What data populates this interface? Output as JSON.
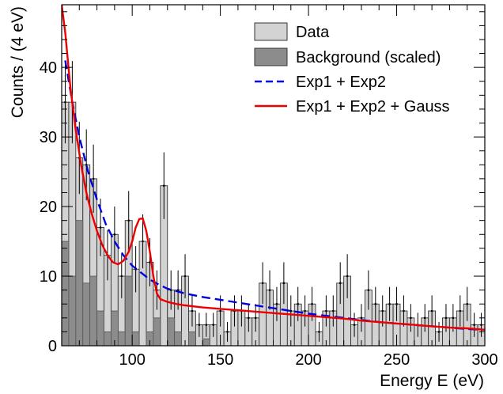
{
  "chart_data": {
    "type": "bar",
    "xlabel": "Energy E (eV)",
    "ylabel": "Counts / (4 eV)",
    "xlim": [
      60,
      300
    ],
    "ylim": [
      0,
      49
    ],
    "bin_width": 4,
    "x_ticks": [
      100,
      150,
      200,
      250,
      300
    ],
    "y_ticks": [
      0,
      10,
      20,
      30,
      40
    ],
    "grid": false,
    "legend_position": "top-right",
    "legend": [
      {
        "label": "Data",
        "kind": "box",
        "color": "#d3d3d3"
      },
      {
        "label": "Background (scaled)",
        "kind": "box",
        "color": "#8c8c8c"
      },
      {
        "label": "Exp1 + Exp2",
        "kind": "dashed-line",
        "color": "#0000dd"
      },
      {
        "label": "Exp1 + Exp2 + Gauss",
        "kind": "line",
        "color": "#ee0000"
      }
    ],
    "series": [
      {
        "name": "Data",
        "color": "#d3d3d3",
        "bin_start": 60,
        "values": [
          35,
          35,
          27,
          26,
          24,
          17,
          13,
          16,
          10,
          18,
          11,
          15,
          12,
          8,
          23,
          8,
          8,
          10,
          5,
          3,
          3,
          3,
          5,
          2,
          5,
          5,
          4,
          4,
          9,
          8,
          6,
          9,
          5,
          6,
          5,
          6,
          2,
          5,
          5,
          9,
          10,
          3,
          4,
          8,
          6,
          5,
          6,
          6,
          5,
          4,
          3,
          4,
          5,
          2,
          4,
          4,
          5,
          6,
          3,
          3
        ]
      },
      {
        "name": "Background (scaled)",
        "color": "#8c8c8c",
        "bin_start": 60,
        "values": [
          15,
          10,
          18,
          9,
          10,
          5,
          2,
          5,
          2,
          10,
          2,
          0,
          2,
          4,
          0,
          4,
          2,
          0,
          2,
          0,
          1,
          0,
          0,
          0,
          0,
          0,
          0,
          0,
          0,
          0,
          0,
          0,
          0,
          0,
          0,
          0,
          0,
          0,
          0,
          0,
          0,
          0,
          0,
          0,
          0,
          0,
          0,
          0,
          0,
          0,
          0,
          0,
          0,
          0,
          0,
          0,
          0,
          0,
          0,
          0
        ]
      },
      {
        "name": "Exp1 + Exp2",
        "color": "#0000dd",
        "dash": true,
        "x": [
          62,
          66,
          70,
          75,
          80,
          85,
          90,
          95,
          100,
          105,
          110,
          115,
          120,
          130,
          140,
          150,
          160,
          170,
          180,
          190,
          200,
          210,
          220,
          230,
          240,
          250,
          260,
          270,
          280,
          290,
          300
        ],
        "y": [
          41,
          35,
          30,
          25,
          21,
          17.5,
          15,
          13,
          11.5,
          10.5,
          9.5,
          8.8,
          8.2,
          7.5,
          7,
          6.6,
          6.2,
          5.8,
          5.4,
          5,
          4.6,
          4.3,
          4.0,
          3.7,
          3.4,
          3.2,
          3.0,
          2.8,
          2.6,
          2.4,
          2.3
        ]
      },
      {
        "name": "Exp1 + Exp2 + Gauss",
        "color": "#ee0000",
        "dash": false,
        "x": [
          60,
          62,
          65,
          68,
          71,
          74,
          77,
          80,
          83,
          86,
          89,
          92,
          95,
          98,
          100,
          102,
          104,
          106,
          108,
          110,
          112,
          114,
          116,
          120,
          125,
          130,
          140,
          150,
          160,
          170,
          180,
          190,
          200,
          210,
          220,
          230,
          240,
          250,
          260,
          270,
          280,
          290,
          300
        ],
        "y": [
          49,
          45,
          37,
          31,
          26,
          22,
          19,
          16.5,
          14.5,
          13,
          12,
          11.7,
          12.2,
          13.5,
          15,
          17,
          18.2,
          18.3,
          16.5,
          13.5,
          10,
          7.5,
          6.7,
          6.3,
          6.0,
          5.8,
          5.5,
          5.3,
          5.1,
          4.9,
          4.7,
          4.5,
          4.3,
          4.1,
          3.9,
          3.6,
          3.4,
          3.2,
          3.0,
          2.8,
          2.6,
          2.5,
          2.3
        ]
      }
    ]
  }
}
